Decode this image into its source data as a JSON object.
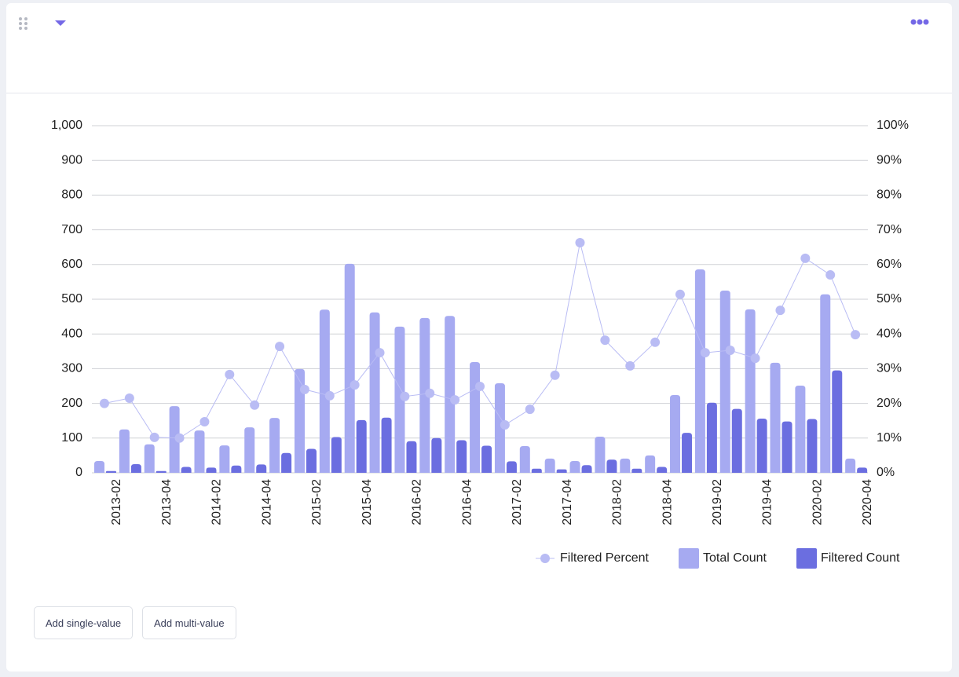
{
  "chart_data": {
    "type": "bar",
    "categories": [
      "2013-02",
      null,
      "2013-04",
      null,
      "2014-02",
      null,
      "2014-04",
      null,
      "2015-02",
      null,
      "2015-04",
      null,
      "2016-02",
      null,
      "2016-04",
      null,
      "2017-02",
      null,
      "2017-04",
      null,
      "2018-02",
      null,
      "2018-04",
      null,
      "2019-02",
      null,
      "2019-04",
      null,
      "2020-02",
      null,
      "2020-04"
    ],
    "series": [
      {
        "name": "Filtered Percent",
        "type": "line",
        "axis": "y2",
        "color": "#b9bcf4",
        "values": [
          20,
          21.5,
          10.2,
          10,
          14.7,
          28.3,
          19.5,
          36.4,
          24,
          22.2,
          25.3,
          34.6,
          22,
          22.9,
          21,
          24.9,
          13.8,
          18.3,
          28.1,
          66.3,
          38.2,
          30.8,
          37.6,
          51.4,
          34.6,
          35.3,
          33,
          46.8,
          61.8,
          57,
          39.8
        ]
      },
      {
        "name": "Total Count",
        "type": "bar",
        "color": "#a6aaf1",
        "values": [
          34,
          125,
          82,
          192,
          122,
          79,
          131,
          158,
          299,
          470,
          602,
          462,
          421,
          446,
          452,
          319,
          258,
          77,
          41,
          34,
          104,
          41,
          50,
          224,
          586,
          525,
          471,
          317,
          251,
          514,
          41
        ]
      },
      {
        "name": "Filtered Count",
        "type": "bar",
        "color": "#6b6ee0",
        "values": [
          5,
          25,
          5,
          17,
          15,
          21,
          24,
          57,
          69,
          103,
          152,
          159,
          91,
          100,
          94,
          78,
          33,
          12,
          10,
          22,
          38,
          12,
          17,
          115,
          202,
          184,
          156,
          148,
          155,
          295,
          15
        ]
      }
    ],
    "ylim": [
      0,
      1000
    ],
    "yticks": [
      0,
      100,
      200,
      300,
      400,
      500,
      600,
      700,
      800,
      900,
      {
        "value": 1000,
        "label": "1,000"
      }
    ],
    "y2lim": [
      0,
      100
    ],
    "y2ticks": [
      {
        "value": 0,
        "label": "0%"
      },
      {
        "value": 10,
        "label": "10%"
      },
      {
        "value": 20,
        "label": "20%"
      },
      {
        "value": 30,
        "label": "30%"
      },
      {
        "value": 40,
        "label": "40%"
      },
      {
        "value": 50,
        "label": "50%"
      },
      {
        "value": 60,
        "label": "60%"
      },
      {
        "value": 70,
        "label": "70%"
      },
      {
        "value": 80,
        "label": "80%"
      },
      {
        "value": 90,
        "label": "90%"
      },
      {
        "value": 100,
        "label": "100%"
      }
    ],
    "grid": true,
    "legend": "bottom-right"
  },
  "buttons": [
    "Add single-value",
    "Add multi-value"
  ]
}
